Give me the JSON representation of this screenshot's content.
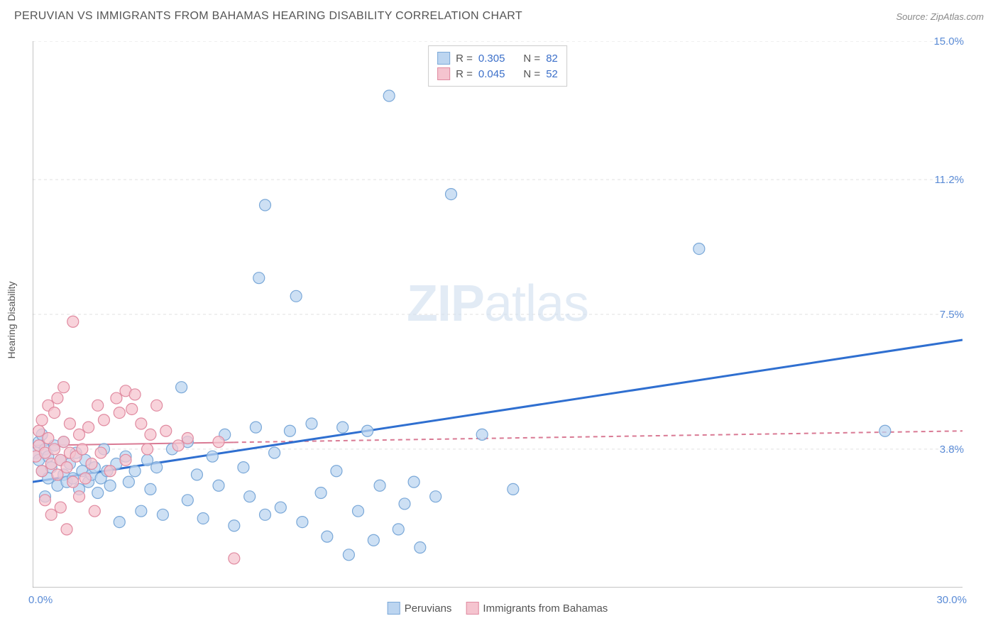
{
  "header": {
    "title": "PERUVIAN VS IMMIGRANTS FROM BAHAMAS HEARING DISABILITY CORRELATION CHART",
    "source": "Source: ZipAtlas.com"
  },
  "chart": {
    "type": "scatter",
    "y_label": "Hearing Disability",
    "watermark_zip": "ZIP",
    "watermark_atlas": "atlas",
    "x_min": 0.0,
    "x_max": 30.0,
    "y_min": 0.0,
    "y_max": 15.0,
    "x_start_label": "0.0%",
    "x_end_label": "30.0%",
    "y_grid": [
      {
        "v": 3.8,
        "label": "3.8%"
      },
      {
        "v": 7.5,
        "label": "7.5%"
      },
      {
        "v": 11.2,
        "label": "11.2%"
      },
      {
        "v": 15.0,
        "label": "15.0%"
      }
    ],
    "x_ticks": [
      2.5,
      5.0,
      7.5,
      10.0,
      12.5,
      15.0,
      17.5,
      20.0,
      22.5,
      25.0,
      27.5
    ],
    "marker_radius": 8,
    "marker_stroke_width": 1.2,
    "grid_color": "#e0e0e0",
    "grid_dash": "4,4",
    "axis_line_color": "#888888",
    "background_color": "#ffffff",
    "axis_label_color": "#5a8bd6",
    "series": [
      {
        "name": "Peruvians",
        "fill": "#bcd5f0",
        "stroke": "#7aa8d8",
        "line_color": "#2f6fd0",
        "line_width": 3,
        "r_label": "R =",
        "r_value": "0.305",
        "n_label": "N =",
        "n_value": "82",
        "trend": {
          "x1": 0.0,
          "y1": 2.9,
          "x2": 30.0,
          "y2": 6.8,
          "dash": null
        },
        "points": [
          [
            0.1,
            3.7
          ],
          [
            0.2,
            4.0
          ],
          [
            0.2,
            3.5
          ],
          [
            0.3,
            3.2
          ],
          [
            0.3,
            4.2
          ],
          [
            0.4,
            3.8
          ],
          [
            0.5,
            3.0
          ],
          [
            0.5,
            3.6
          ],
          [
            0.6,
            3.3
          ],
          [
            0.7,
            3.9
          ],
          [
            0.8,
            2.8
          ],
          [
            0.9,
            3.5
          ],
          [
            1.0,
            3.1
          ],
          [
            1.0,
            4.0
          ],
          [
            1.1,
            2.9
          ],
          [
            1.2,
            3.4
          ],
          [
            1.3,
            3.0
          ],
          [
            1.4,
            3.7
          ],
          [
            1.5,
            2.7
          ],
          [
            1.6,
            3.2
          ],
          [
            1.7,
            3.5
          ],
          [
            1.8,
            2.9
          ],
          [
            1.9,
            3.1
          ],
          [
            2.0,
            3.3
          ],
          [
            2.1,
            2.6
          ],
          [
            2.2,
            3.0
          ],
          [
            2.3,
            3.8
          ],
          [
            2.4,
            3.2
          ],
          [
            2.5,
            2.8
          ],
          [
            2.7,
            3.4
          ],
          [
            2.8,
            1.8
          ],
          [
            3.0,
            3.6
          ],
          [
            3.1,
            2.9
          ],
          [
            3.3,
            3.2
          ],
          [
            3.5,
            2.1
          ],
          [
            3.7,
            3.5
          ],
          [
            3.8,
            2.7
          ],
          [
            4.0,
            3.3
          ],
          [
            4.2,
            2.0
          ],
          [
            4.5,
            3.8
          ],
          [
            4.8,
            5.5
          ],
          [
            5.0,
            2.4
          ],
          [
            5.0,
            4.0
          ],
          [
            5.3,
            3.1
          ],
          [
            5.5,
            1.9
          ],
          [
            5.8,
            3.6
          ],
          [
            6.0,
            2.8
          ],
          [
            6.2,
            4.2
          ],
          [
            6.5,
            1.7
          ],
          [
            6.8,
            3.3
          ],
          [
            7.0,
            2.5
          ],
          [
            7.2,
            4.4
          ],
          [
            7.3,
            8.5
          ],
          [
            7.5,
            2.0
          ],
          [
            7.5,
            10.5
          ],
          [
            7.8,
            3.7
          ],
          [
            8.0,
            2.2
          ],
          [
            8.3,
            4.3
          ],
          [
            8.5,
            8.0
          ],
          [
            8.7,
            1.8
          ],
          [
            9.0,
            4.5
          ],
          [
            9.3,
            2.6
          ],
          [
            9.5,
            1.4
          ],
          [
            9.8,
            3.2
          ],
          [
            10.0,
            4.4
          ],
          [
            10.2,
            0.9
          ],
          [
            10.5,
            2.1
          ],
          [
            10.8,
            4.3
          ],
          [
            11.0,
            1.3
          ],
          [
            11.2,
            2.8
          ],
          [
            11.5,
            13.5
          ],
          [
            11.8,
            1.6
          ],
          [
            12.0,
            2.3
          ],
          [
            12.3,
            2.9
          ],
          [
            12.5,
            1.1
          ],
          [
            13.0,
            2.5
          ],
          [
            13.5,
            10.8
          ],
          [
            14.5,
            4.2
          ],
          [
            15.5,
            2.7
          ],
          [
            21.5,
            9.3
          ],
          [
            27.5,
            4.3
          ],
          [
            0.4,
            2.5
          ]
        ]
      },
      {
        "name": "Immigrants from Bahamas",
        "fill": "#f5c4cf",
        "stroke": "#e08aa0",
        "line_color": "#d97a94",
        "line_width": 2,
        "r_label": "R =",
        "r_value": "0.045",
        "n_label": "N =",
        "n_value": "52",
        "trend": {
          "x1": 0.0,
          "y1": 3.9,
          "x2": 30.0,
          "y2": 4.3,
          "dash": "6,5",
          "solid_until": 6.5
        },
        "points": [
          [
            0.1,
            3.6
          ],
          [
            0.2,
            3.9
          ],
          [
            0.2,
            4.3
          ],
          [
            0.3,
            3.2
          ],
          [
            0.3,
            4.6
          ],
          [
            0.4,
            3.7
          ],
          [
            0.4,
            2.4
          ],
          [
            0.5,
            4.1
          ],
          [
            0.5,
            5.0
          ],
          [
            0.6,
            3.4
          ],
          [
            0.6,
            2.0
          ],
          [
            0.7,
            3.8
          ],
          [
            0.7,
            4.8
          ],
          [
            0.8,
            3.1
          ],
          [
            0.8,
            5.2
          ],
          [
            0.9,
            3.5
          ],
          [
            0.9,
            2.2
          ],
          [
            1.0,
            4.0
          ],
          [
            1.0,
            5.5
          ],
          [
            1.1,
            3.3
          ],
          [
            1.1,
            1.6
          ],
          [
            1.2,
            3.7
          ],
          [
            1.2,
            4.5
          ],
          [
            1.3,
            2.9
          ],
          [
            1.3,
            7.3
          ],
          [
            1.4,
            3.6
          ],
          [
            1.5,
            4.2
          ],
          [
            1.5,
            2.5
          ],
          [
            1.6,
            3.8
          ],
          [
            1.7,
            3.0
          ],
          [
            1.8,
            4.4
          ],
          [
            1.9,
            3.4
          ],
          [
            2.0,
            2.1
          ],
          [
            2.1,
            5.0
          ],
          [
            2.2,
            3.7
          ],
          [
            2.3,
            4.6
          ],
          [
            2.5,
            3.2
          ],
          [
            2.7,
            5.2
          ],
          [
            2.8,
            4.8
          ],
          [
            3.0,
            5.4
          ],
          [
            3.0,
            3.5
          ],
          [
            3.2,
            4.9
          ],
          [
            3.3,
            5.3
          ],
          [
            3.5,
            4.5
          ],
          [
            3.7,
            3.8
          ],
          [
            3.8,
            4.2
          ],
          [
            4.0,
            5.0
          ],
          [
            4.3,
            4.3
          ],
          [
            4.7,
            3.9
          ],
          [
            5.0,
            4.1
          ],
          [
            6.0,
            4.0
          ],
          [
            6.5,
            0.8
          ]
        ]
      }
    ]
  },
  "legend_bottom": {
    "series1": "Peruvians",
    "series2": "Immigrants from Bahamas"
  }
}
